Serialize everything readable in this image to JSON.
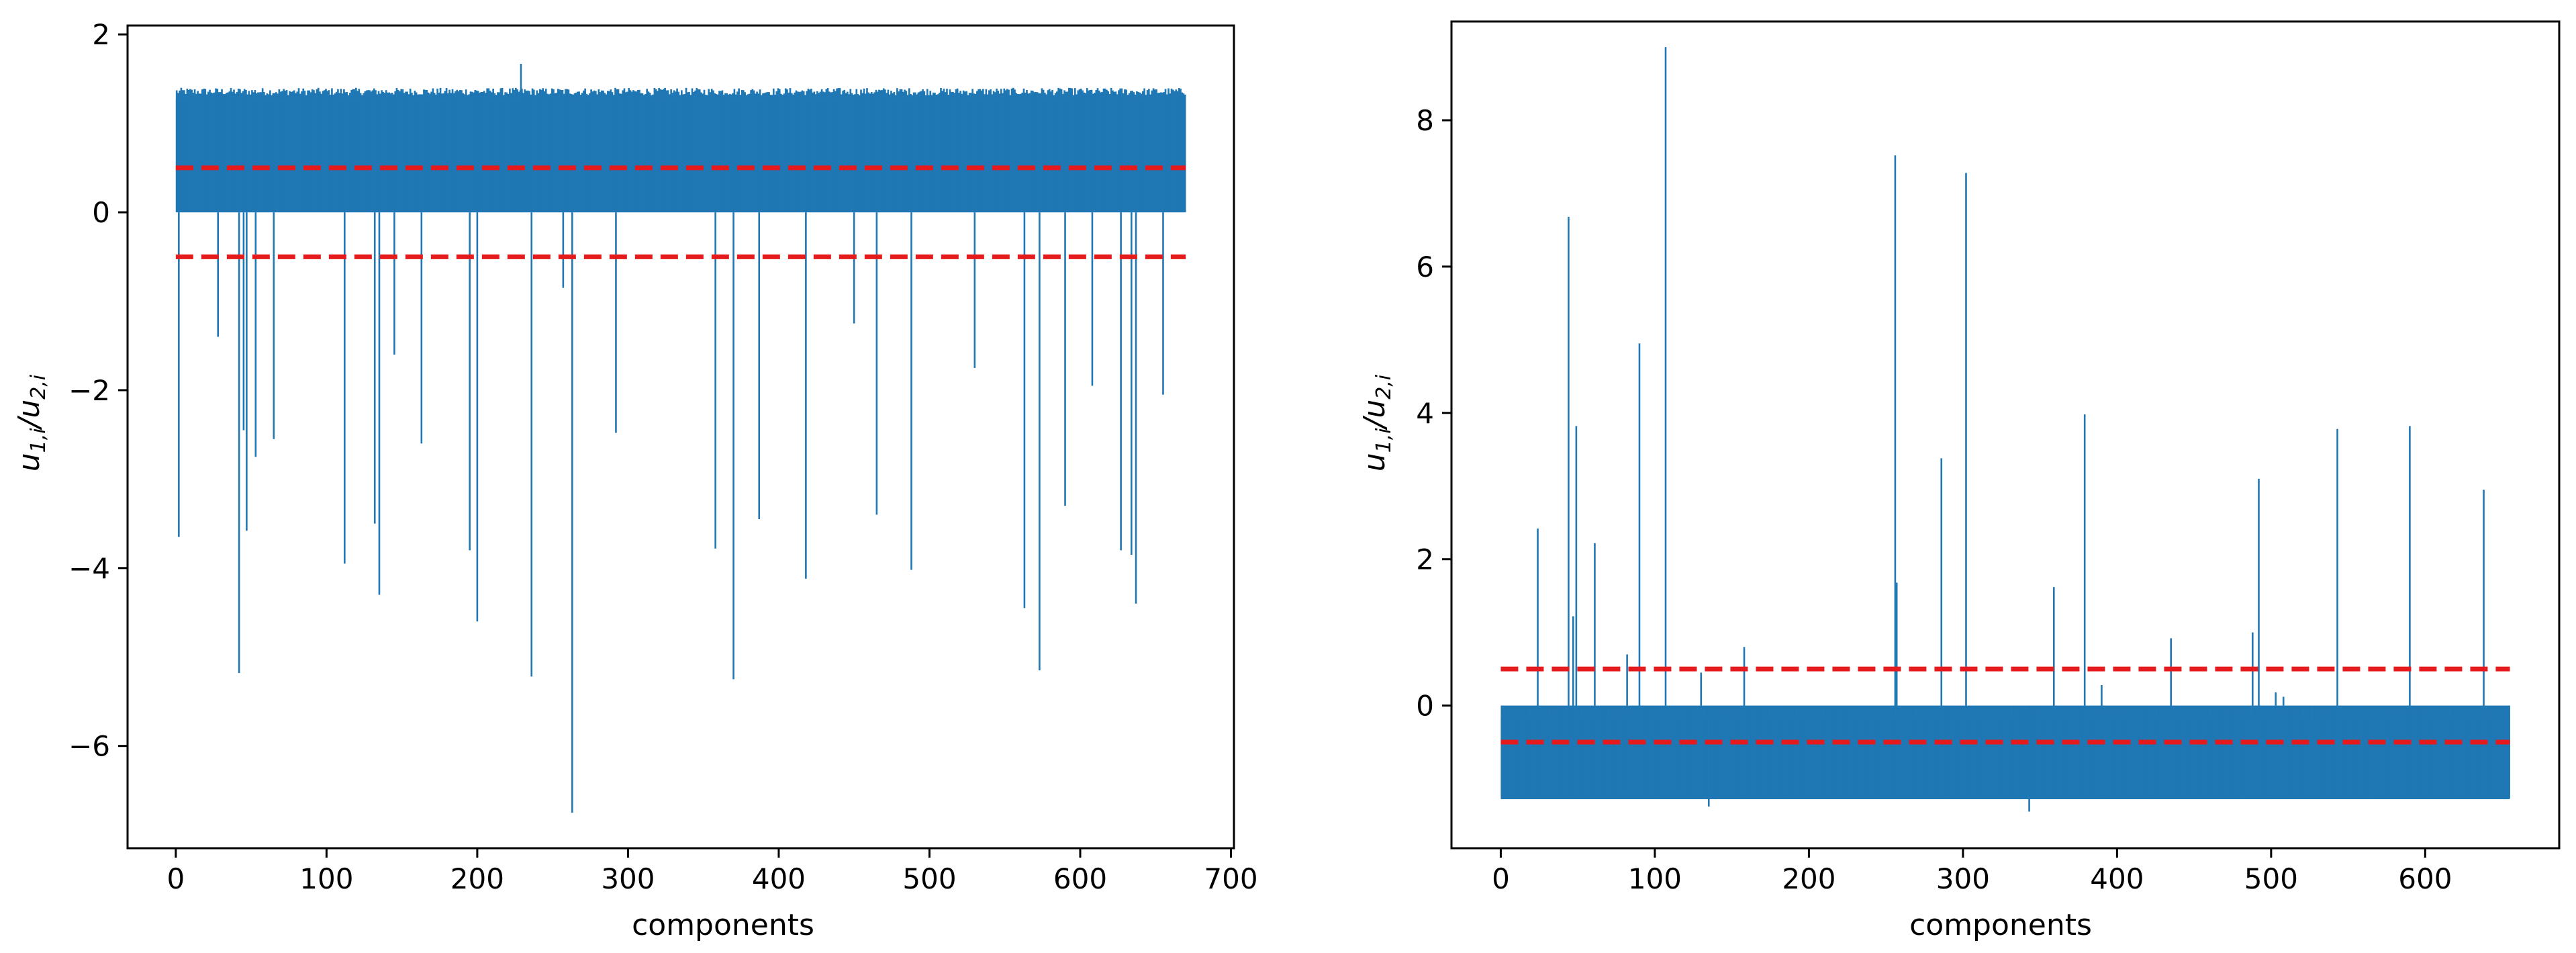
{
  "colors": {
    "bars": "#1f77b4",
    "threshold": "#e41a1c",
    "axes": "#000000",
    "background": "#ffffff"
  },
  "chart_data": [
    {
      "type": "bar",
      "title": "",
      "xlabel": "components",
      "ylabel_base": "u",
      "ylabel_sub1": "1,i",
      "ylabel_sep": "/u",
      "ylabel_sub2": "2,i",
      "xlim": [
        -32,
        702
      ],
      "ylim": [
        -7.15,
        2.1
      ],
      "xticks": [
        0,
        100,
        200,
        300,
        400,
        500,
        600,
        700
      ],
      "xtick_labels": [
        "0",
        "100",
        "200",
        "300",
        "400",
        "500",
        "600",
        "700"
      ],
      "yticks": [
        -6,
        -4,
        -2,
        0,
        2
      ],
      "ytick_labels": [
        "−6",
        "−4",
        "−2",
        "0",
        "2"
      ],
      "n_components": 670,
      "band": {
        "from": 0,
        "to": 670,
        "low": 0.0,
        "high": 1.4
      },
      "thresholds": [
        0.5,
        -0.5
      ],
      "spikes": [
        [
          2,
          -3.65
        ],
        [
          28,
          -1.4
        ],
        [
          42,
          -5.18
        ],
        [
          45,
          -2.45
        ],
        [
          47,
          -3.58
        ],
        [
          53,
          -2.75
        ],
        [
          65,
          -2.55
        ],
        [
          112,
          -3.95
        ],
        [
          132,
          -3.5
        ],
        [
          135,
          -4.3
        ],
        [
          145,
          -1.6
        ],
        [
          163,
          -2.6
        ],
        [
          195,
          -3.8
        ],
        [
          200,
          -4.6
        ],
        [
          236,
          -5.22
        ],
        [
          257,
          -0.85
        ],
        [
          263,
          -6.75
        ],
        [
          292,
          -2.48
        ],
        [
          358,
          -3.78
        ],
        [
          370,
          -5.25
        ],
        [
          387,
          -3.45
        ],
        [
          418,
          -4.12
        ],
        [
          450,
          -1.25
        ],
        [
          465,
          -3.4
        ],
        [
          488,
          -4.02
        ],
        [
          530,
          -1.75
        ],
        [
          563,
          -4.45
        ],
        [
          573,
          -5.15
        ],
        [
          590,
          -3.3
        ],
        [
          608,
          -1.95
        ],
        [
          627,
          -3.8
        ],
        [
          634,
          -3.85
        ],
        [
          637,
          -4.4
        ],
        [
          655,
          -2.05
        ],
        [
          229,
          1.67
        ]
      ]
    },
    {
      "type": "bar",
      "title": "",
      "xlabel": "components",
      "ylabel_base": "u",
      "ylabel_sub1": "1,i",
      "ylabel_sep": "/u",
      "ylabel_sub2": "2,i",
      "xlim": [
        -32,
        687
      ],
      "ylim": [
        -1.95,
        9.35
      ],
      "xticks": [
        0,
        100,
        200,
        300,
        400,
        500,
        600
      ],
      "xtick_labels": [
        "0",
        "100",
        "200",
        "300",
        "400",
        "500",
        "600"
      ],
      "yticks": [
        0,
        2,
        4,
        6,
        8
      ],
      "ytick_labels": [
        "0",
        "2",
        "4",
        "6",
        "8"
      ],
      "n_components": 655,
      "band": {
        "from": 0,
        "to": 655,
        "low": -1.28,
        "high": 0.0
      },
      "thresholds": [
        0.5,
        -0.5
      ],
      "spikes": [
        [
          24,
          2.42
        ],
        [
          44,
          6.68
        ],
        [
          47,
          1.22
        ],
        [
          49,
          3.82
        ],
        [
          61,
          2.22
        ],
        [
          82,
          0.7
        ],
        [
          90,
          4.95
        ],
        [
          107,
          9.0
        ],
        [
          130,
          0.45
        ],
        [
          158,
          0.8
        ],
        [
          256,
          7.52
        ],
        [
          257,
          1.68
        ],
        [
          286,
          3.38
        ],
        [
          302,
          7.28
        ],
        [
          359,
          1.62
        ],
        [
          379,
          3.98
        ],
        [
          390,
          0.28
        ],
        [
          435,
          0.92
        ],
        [
          488,
          1.0
        ],
        [
          492,
          3.1
        ],
        [
          503,
          0.18
        ],
        [
          508,
          0.12
        ],
        [
          543,
          3.78
        ],
        [
          590,
          3.82
        ],
        [
          638,
          2.95
        ],
        [
          343,
          -1.45
        ],
        [
          135,
          -1.38
        ]
      ]
    }
  ]
}
